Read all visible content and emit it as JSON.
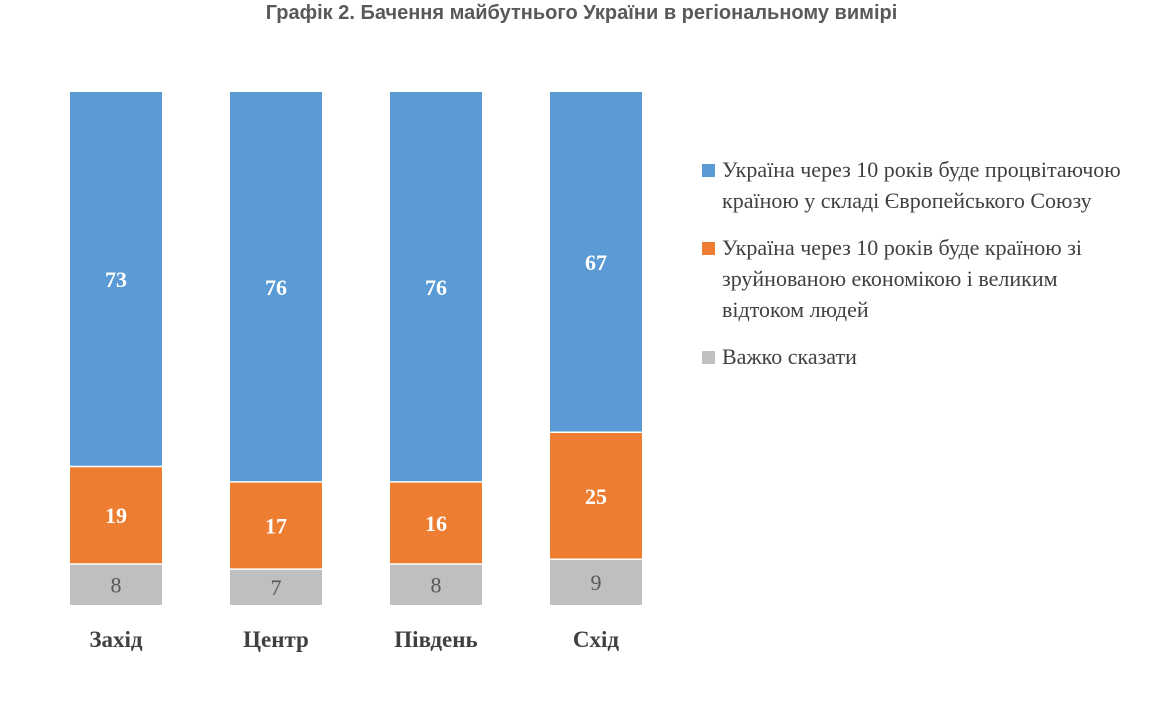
{
  "chart_data": {
    "type": "bar",
    "stacked": true,
    "title": "Графік 2. Бачення майбутнього України в регіональному вимірі",
    "categories": [
      "Захід",
      "Центр",
      "Південь",
      "Схід"
    ],
    "series": [
      {
        "name": "Україна через 10 років буде процвітаючою країною у складі Європейського Союзу",
        "values": [
          73,
          76,
          76,
          67
        ],
        "color": "#5b9bd5"
      },
      {
        "name": "Україна через 10 років буде країною зі зруйнованою економікою і великим відтоком людей",
        "values": [
          19,
          17,
          16,
          25
        ],
        "color": "#ed7d31"
      },
      {
        "name": "Важко сказати",
        "values": [
          8,
          7,
          8,
          9
        ],
        "color": "#bfbfbf"
      }
    ],
    "ylim": [
      0,
      100
    ],
    "grid": false,
    "legend_position": "right"
  }
}
